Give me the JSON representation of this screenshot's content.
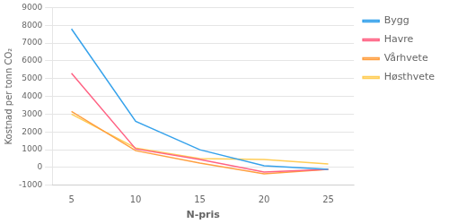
{
  "chart_data": {
    "type": "line",
    "x": [
      5,
      10,
      15,
      20,
      25
    ],
    "series": [
      {
        "name": "Bygg",
        "values": [
          7800,
          2600,
          1000,
          100,
          -100
        ]
      },
      {
        "name": "Havre",
        "values": [
          5300,
          1050,
          450,
          -250,
          -100
        ]
      },
      {
        "name": "Vårhvete",
        "values": [
          3150,
          950,
          250,
          -350,
          -100
        ]
      },
      {
        "name": "Høsthvete",
        "values": [
          3000,
          1100,
          500,
          450,
          200
        ]
      }
    ],
    "xlabel": "N-pris",
    "ylabel": "Kostnad per tonn CO₂",
    "xlim": [
      3.5,
      27
    ],
    "xticks": [
      5,
      10,
      15,
      20,
      25
    ],
    "ylim": [
      -1000,
      9000
    ],
    "yticks": [
      -1000,
      0,
      1000,
      2000,
      3000,
      4000,
      5000,
      6000,
      7000,
      8000,
      9000
    ],
    "grid": true,
    "legend": "right"
  }
}
